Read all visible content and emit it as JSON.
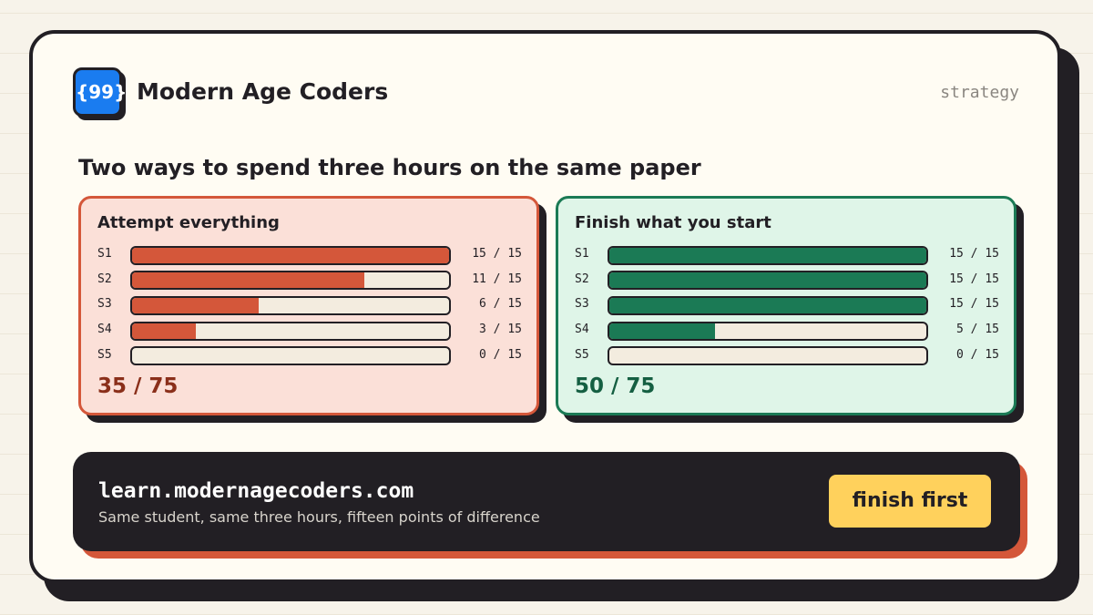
{
  "header": {
    "brand": "Modern Age Coders",
    "tag": "strategy"
  },
  "heading": "Two ways to spend three hours on the same paper",
  "panels": [
    {
      "title": "Attempt everything",
      "out_of": 15,
      "color": "#d4573a",
      "total": "35 / 75",
      "total_color": "#8a2f1a",
      "rows": [
        {
          "label": "S1",
          "score": 15,
          "score_label": "15 / 15"
        },
        {
          "label": "S2",
          "score": 11,
          "score_label": "11 / 15"
        },
        {
          "label": "S3",
          "score": 6,
          "score_label": "6 / 15"
        },
        {
          "label": "S4",
          "score": 3,
          "score_label": "3 / 15"
        },
        {
          "label": "S5",
          "score": 0,
          "score_label": "0 / 15"
        }
      ]
    },
    {
      "title": "Finish what you start",
      "out_of": 15,
      "color": "#1b7a55",
      "total": "50 / 75",
      "total_color": "#155f42",
      "rows": [
        {
          "label": "S1",
          "score": 15,
          "score_label": "15 / 15"
        },
        {
          "label": "S2",
          "score": 15,
          "score_label": "15 / 15"
        },
        {
          "label": "S3",
          "score": 15,
          "score_label": "15 / 15"
        },
        {
          "label": "S4",
          "score": 5,
          "score_label": "5 / 15"
        },
        {
          "label": "S5",
          "score": 0,
          "score_label": "0 / 15"
        }
      ]
    }
  ],
  "footer": {
    "url": "learn.modernagecoders.com",
    "caption": "Same student, same three hours, fifteen points of difference",
    "button": "finish first"
  }
}
